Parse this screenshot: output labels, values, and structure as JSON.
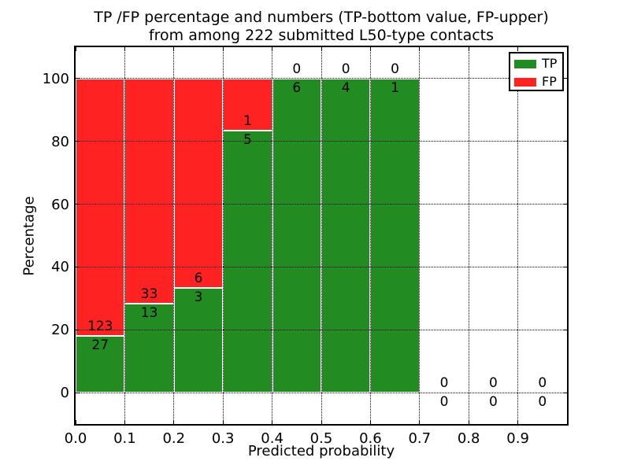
{
  "chart_data": {
    "type": "bar",
    "subtype": "stacked-percentage-histogram",
    "title": "TP /FP percentage and numbers (TP-bottom value, FP-upper)\nfrom among 222 submitted L50-type contacts",
    "title_line1": "TP /FP percentage and numbers (TP-bottom value, FP-upper)",
    "title_line2": "from among 222 submitted L50-type contacts",
    "xlabel": "Predicted probability",
    "ylabel": "Percentage",
    "total_submitted": 222,
    "xlim": [
      0.0,
      1.0
    ],
    "ylim": [
      -10,
      110
    ],
    "grid": true,
    "xticks": [
      {
        "label": "0.0",
        "value": 0.0
      },
      {
        "label": "0.1",
        "value": 0.1
      },
      {
        "label": "0.2",
        "value": 0.2
      },
      {
        "label": "0.3",
        "value": 0.3
      },
      {
        "label": "0.4",
        "value": 0.4
      },
      {
        "label": "0.5",
        "value": 0.5
      },
      {
        "label": "0.6",
        "value": 0.6
      },
      {
        "label": "0.7",
        "value": 0.7
      },
      {
        "label": "0.8",
        "value": 0.8
      },
      {
        "label": "0.9",
        "value": 0.9
      }
    ],
    "yticks": [
      {
        "label": "0",
        "value": 0
      },
      {
        "label": "20",
        "value": 20
      },
      {
        "label": "40",
        "value": 40
      },
      {
        "label": "60",
        "value": 60
      },
      {
        "label": "80",
        "value": 80
      },
      {
        "label": "100",
        "value": 100
      }
    ],
    "bins": [
      {
        "range": [
          0.0,
          0.1
        ],
        "tp": 27,
        "fp": 123
      },
      {
        "range": [
          0.1,
          0.2
        ],
        "tp": 13,
        "fp": 33
      },
      {
        "range": [
          0.2,
          0.3
        ],
        "tp": 3,
        "fp": 6
      },
      {
        "range": [
          0.3,
          0.4
        ],
        "tp": 5,
        "fp": 1
      },
      {
        "range": [
          0.4,
          0.5
        ],
        "tp": 6,
        "fp": 0
      },
      {
        "range": [
          0.5,
          0.6
        ],
        "tp": 4,
        "fp": 0
      },
      {
        "range": [
          0.6,
          0.7
        ],
        "tp": 1,
        "fp": 0
      },
      {
        "range": [
          0.7,
          0.8
        ],
        "tp": 0,
        "fp": 0
      },
      {
        "range": [
          0.8,
          0.9
        ],
        "tp": 0,
        "fp": 0
      },
      {
        "range": [
          0.9,
          1.0
        ],
        "tp": 0,
        "fp": 0
      }
    ],
    "colors": {
      "tp": "#228b22",
      "fp": "#ff2222",
      "grid": "#000000",
      "frame": "#000000"
    },
    "legend": {
      "position": "upper-right",
      "entries": [
        {
          "label": "TP",
          "color": "#228b22"
        },
        {
          "label": "FP",
          "color": "#ff2222"
        }
      ]
    }
  }
}
